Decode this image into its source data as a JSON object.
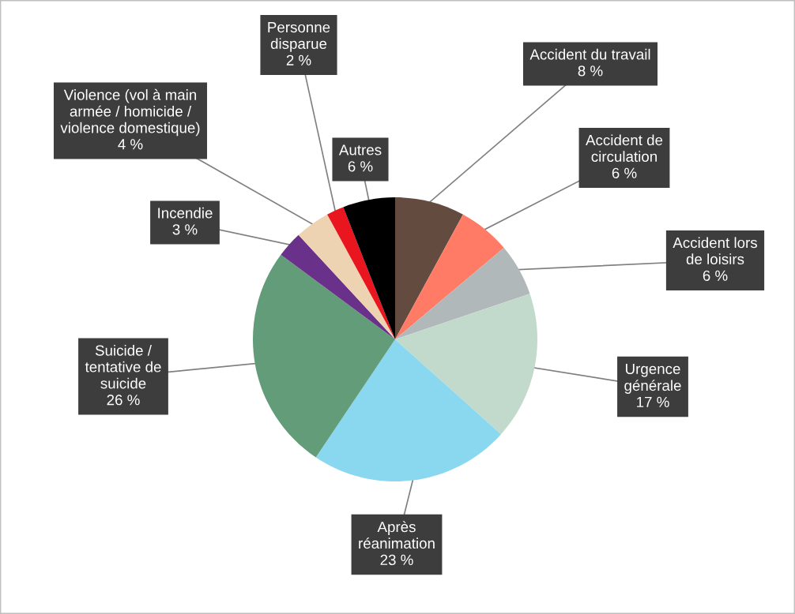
{
  "chart_data": {
    "type": "pie",
    "categories": [
      "Accident du travail",
      "Accident de\ncirculation",
      "Accident lors\nde loisirs",
      "Urgence\ngénérale",
      "Après\nréanimation",
      "Suicide /\ntentative de\nsuicide",
      "Incendie",
      "Violence (vol à main\narmée / homicide /\nviolence domestique)",
      "Personne\ndisparue",
      "Autres"
    ],
    "values": [
      8,
      6,
      6,
      17,
      23,
      26,
      3,
      4,
      2,
      6
    ],
    "colors": [
      "#634b40",
      "#ff7b66",
      "#b1b8ba",
      "#c2dacc",
      "#8ad8ef",
      "#639c79",
      "#693189",
      "#eed3b2",
      "#e9151f",
      "#000000"
    ],
    "value_labels": [
      "8 %",
      "6 %",
      "6 %",
      "17 %",
      "23 %",
      "26 %",
      "3 %",
      "4 %",
      "2 %",
      "6 %"
    ]
  }
}
